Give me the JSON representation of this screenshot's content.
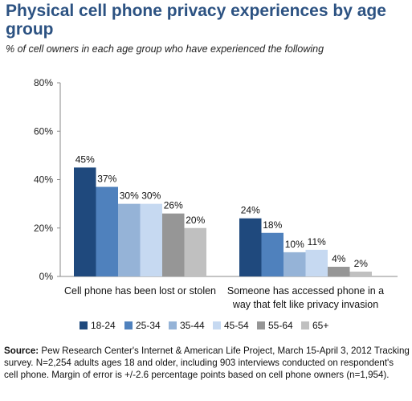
{
  "title": "Physical cell phone privacy experiences by age group",
  "subtitle": "% of cell owners in each age group who have experienced the following",
  "source_label": "Source:",
  "source_text": "Pew Research Center's Internet & American Life Project, March 15-April 3, 2012 Tracking survey. N=2,254 adults ages 18 and older, including 903 interviews conducted on respondent's cell phone. Margin of error is +/-2.6 percentage points based on cell phone owners (n=1,954).",
  "chart_data": {
    "type": "bar",
    "categories": [
      [
        "Cell phone has been lost or stolen"
      ],
      [
        "Someone has accessed phone in a",
        "way that felt like privacy invasion"
      ]
    ],
    "series": [
      {
        "name": "18-24",
        "values": [
          45,
          24
        ],
        "color": "#1f497d"
      },
      {
        "name": "25-34",
        "values": [
          37,
          18
        ],
        "color": "#4f81bd"
      },
      {
        "name": "35-44",
        "values": [
          30,
          10
        ],
        "color": "#95b3d7"
      },
      {
        "name": "45-54",
        "values": [
          30,
          11
        ],
        "color": "#c6d9f1"
      },
      {
        "name": "55-64",
        "values": [
          26,
          4
        ],
        "color": "#969696"
      },
      {
        "name": "65+",
        "values": [
          20,
          2
        ],
        "color": "#c0c0c0"
      }
    ],
    "ylim": [
      0,
      80
    ],
    "yticks": [
      0,
      20,
      40,
      60,
      80
    ],
    "tick_format": "%",
    "legend_position": "bottom",
    "grid": false
  }
}
